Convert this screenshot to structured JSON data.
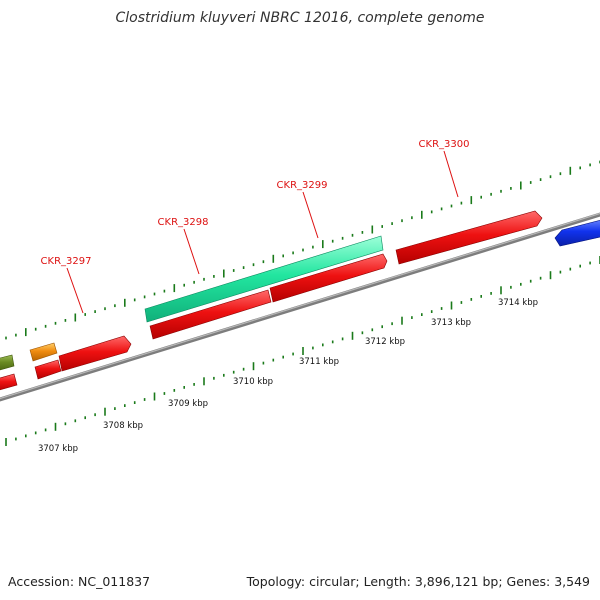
{
  "title": "Clostridium kluyveri NBRC 12016, complete genome",
  "footer": {
    "accession": "Accession: NC_011837",
    "summary": "Topology: circular; Length: 3,896,121 bp; Genes: 3,549"
  },
  "colors": {
    "gene_red": "#ee1111",
    "gene_teal": "#22e6a0",
    "gene_blue": "#1133ee",
    "gene_orange": "#f08c10",
    "gene_olive": "#6a8a22",
    "backbone": "#8a8a8a",
    "tick": "#1a7a1a",
    "label_red": "#dd1111"
  },
  "ruler_labels": [
    "3707 kbp",
    "3708 kbp",
    "3709 kbp",
    "3710 kbp",
    "3711 kbp",
    "3712 kbp",
    "3713 kbp",
    "3714 kbp"
  ],
  "gene_labels": [
    "CKR_3297",
    "CKR_3298",
    "CKR_3299",
    "CKR_3300"
  ]
}
